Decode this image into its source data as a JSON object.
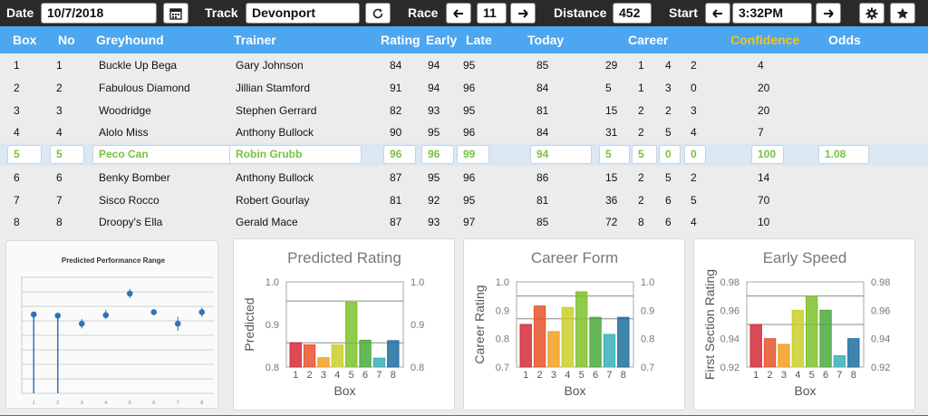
{
  "toolbar": {
    "date_label": "Date",
    "date_value": "10/7/2018",
    "track_label": "Track",
    "track_value": "Devonport",
    "race_label": "Race",
    "race_value": "11",
    "distance_label": "Distance",
    "distance_value": "452",
    "start_label": "Start",
    "start_value": "3:32PM"
  },
  "table": {
    "headers": {
      "box": "Box",
      "no": "No",
      "greyhound": "Greyhound",
      "trainer": "Trainer",
      "rating": "Rating",
      "early": "Early",
      "late": "Late",
      "today": "Today",
      "career": "Career",
      "confidence": "Confidence",
      "odds": "Odds"
    },
    "rows": [
      {
        "box": "1",
        "no": "1",
        "greyhound": "Buckle Up Bega",
        "trainer": "Gary Johnson",
        "rating": "84",
        "early": "94",
        "late": "95",
        "today": "85",
        "c1": "29",
        "c2": "1",
        "c3": "4",
        "c4": "2",
        "confidence": "4",
        "odds": ""
      },
      {
        "box": "2",
        "no": "2",
        "greyhound": "Fabulous Diamond",
        "trainer": "Jillian Stamford",
        "rating": "91",
        "early": "94",
        "late": "96",
        "today": "84",
        "c1": "5",
        "c2": "1",
        "c3": "3",
        "c4": "0",
        "confidence": "20",
        "odds": ""
      },
      {
        "box": "3",
        "no": "3",
        "greyhound": "Woodridge",
        "trainer": "Stephen Gerrard",
        "rating": "82",
        "early": "93",
        "late": "95",
        "today": "81",
        "c1": "15",
        "c2": "2",
        "c3": "2",
        "c4": "3",
        "confidence": "20",
        "odds": ""
      },
      {
        "box": "4",
        "no": "4",
        "greyhound": "Alolo Miss",
        "trainer": "Anthony Bullock",
        "rating": "90",
        "early": "95",
        "late": "96",
        "today": "84",
        "c1": "31",
        "c2": "2",
        "c3": "5",
        "c4": "4",
        "confidence": "7",
        "odds": ""
      },
      {
        "box": "5",
        "no": "5",
        "greyhound": "Peco Can",
        "trainer": "Robin Grubb",
        "rating": "96",
        "early": "96",
        "late": "99",
        "today": "94",
        "c1": "5",
        "c2": "5",
        "c3": "0",
        "c4": "0",
        "confidence": "100",
        "odds": "1.08"
      },
      {
        "box": "6",
        "no": "6",
        "greyhound": "Benky Bomber",
        "trainer": "Anthony Bullock",
        "rating": "87",
        "early": "95",
        "late": "96",
        "today": "86",
        "c1": "15",
        "c2": "2",
        "c3": "5",
        "c4": "2",
        "confidence": "14",
        "odds": ""
      },
      {
        "box": "7",
        "no": "7",
        "greyhound": "Sisco Rocco",
        "trainer": "Robert Gourlay",
        "rating": "81",
        "early": "92",
        "late": "95",
        "today": "81",
        "c1": "36",
        "c2": "2",
        "c3": "6",
        "c4": "5",
        "confidence": "70",
        "odds": ""
      },
      {
        "box": "8",
        "no": "8",
        "greyhound": "Droopy's Ella",
        "trainer": "Gerald Mace",
        "rating": "87",
        "early": "93",
        "late": "97",
        "today": "85",
        "c1": "72",
        "c2": "8",
        "c3": "6",
        "c4": "4",
        "confidence": "10",
        "odds": ""
      }
    ]
  },
  "colors": {
    "header": "#4da6f0",
    "confidence": "#f5c518",
    "selected_text": "#7ac143",
    "bar_colors": [
      "#d42a3a",
      "#e8532d",
      "#f0a020",
      "#c9cf2a",
      "#7fc12b",
      "#4aaa3c",
      "#38b0b8",
      "#1f6fa0"
    ]
  },
  "chart_data": [
    {
      "type": "scatter",
      "title": "Predicted Performance Range",
      "x": [
        "1",
        "2",
        "3",
        "4",
        "5",
        "6",
        "7",
        "8"
      ],
      "y": [
        0.84,
        0.835,
        0.8,
        0.837,
        0.93,
        0.85,
        0.8,
        0.85
      ],
      "error_low": [
        0,
        0,
        0.78,
        0.82,
        0.91,
        0,
        0.77,
        0.83
      ],
      "error_high": [
        0,
        0,
        0.82,
        0.86,
        0.95,
        0,
        0.83,
        0.87
      ],
      "stem_boxes": [
        "1",
        "2"
      ]
    },
    {
      "type": "bar",
      "title": "Predicted Rating",
      "categories": [
        "1",
        "2",
        "3",
        "4",
        "5",
        "6",
        "7",
        "8"
      ],
      "values": [
        0.857,
        0.852,
        0.822,
        0.852,
        0.952,
        0.863,
        0.821,
        0.862
      ],
      "xlabel": "Box",
      "ylabel": "Predicted",
      "ylim": [
        0.8,
        1.0
      ],
      "ticks": [
        "0.8",
        "0.9",
        "1.0"
      ],
      "reference_lines": [
        0.857,
        0.955
      ]
    },
    {
      "type": "bar",
      "title": "Career Form",
      "categories": [
        "1",
        "2",
        "3",
        "4",
        "5",
        "6",
        "7",
        "8"
      ],
      "values": [
        0.85,
        0.915,
        0.825,
        0.91,
        0.965,
        0.875,
        0.815,
        0.875
      ],
      "xlabel": "Box",
      "ylabel": "Career Rating",
      "ylim": [
        0.7,
        1.0
      ],
      "ticks": [
        "0.7",
        "0.8",
        "0.9",
        "1.0"
      ],
      "reference_lines": [
        0.87,
        0.95
      ]
    },
    {
      "type": "bar",
      "title": "Early Speed",
      "categories": [
        "1",
        "2",
        "3",
        "4",
        "5",
        "6",
        "7",
        "8"
      ],
      "values": [
        0.95,
        0.94,
        0.936,
        0.96,
        0.97,
        0.96,
        0.928,
        0.94
      ],
      "xlabel": "Box",
      "ylabel": "First Section Rating",
      "ylim": [
        0.92,
        0.98
      ],
      "ticks": [
        "0.92",
        "0.94",
        "0.96",
        "0.98"
      ],
      "reference_lines": [
        0.95,
        0.97
      ]
    }
  ]
}
